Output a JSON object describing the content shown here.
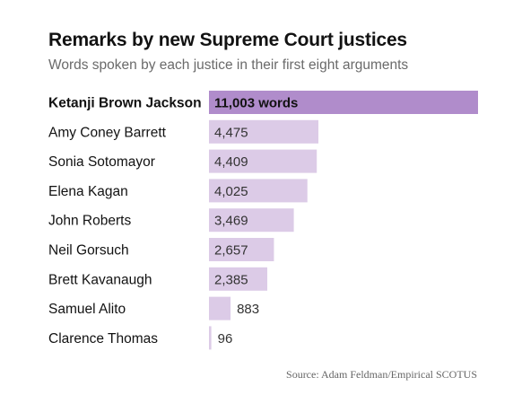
{
  "title": "Remarks by new Supreme Court justices",
  "subtitle": "Words spoken by each justice in their first eight arguments",
  "source": "Source: Adam Feldman/Empirical SCOTUS",
  "colors": {
    "highlight_bar": "#b08ccb",
    "bar": "#dccbe7",
    "highlight_marker": "#8e63b1",
    "label": "#121212",
    "value_text": "#333333"
  },
  "chart_data": {
    "type": "bar",
    "orientation": "horizontal",
    "title": "Remarks by new Supreme Court justices",
    "subtitle": "Words spoken by each justice in their first eight arguments",
    "xlabel": "",
    "ylabel": "",
    "xlim": [
      0,
      11003
    ],
    "grid": false,
    "legend": "none",
    "categories": [
      "Ketanji Brown Jackson",
      "Amy Coney Barrett",
      "Sonia Sotomayor",
      "Elena Kagan",
      "John Roberts",
      "Neil Gorsuch",
      "Brett Kavanaugh",
      "Samuel Alito",
      "Clarence Thomas"
    ],
    "values": [
      11003,
      4475,
      4409,
      4025,
      3469,
      2657,
      2385,
      883,
      96
    ],
    "value_labels": [
      "11,003 words",
      "4,475",
      "4,409",
      "4,025",
      "3,469",
      "2,657",
      "2,385",
      "883",
      "96"
    ],
    "highlight": "Ketanji Brown Jackson"
  }
}
